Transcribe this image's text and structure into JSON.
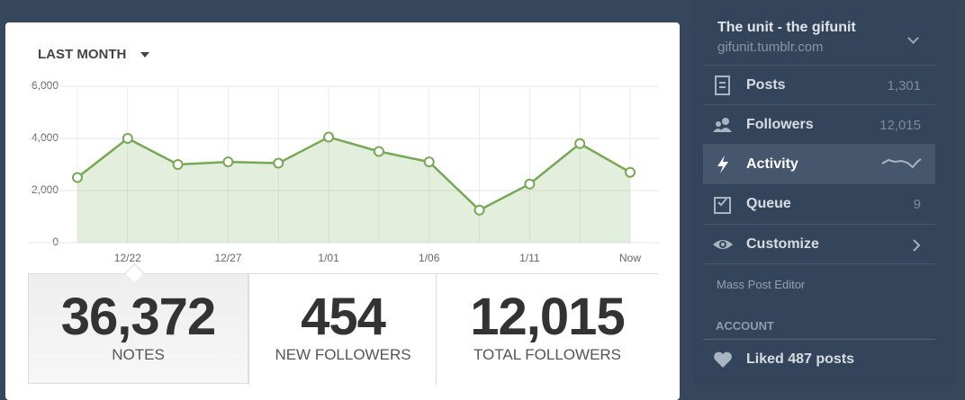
{
  "period": "LAST MONTH",
  "chart_data": {
    "type": "line",
    "categories": [
      null,
      "12/22",
      null,
      "12/27",
      null,
      "1/01",
      null,
      "1/06",
      null,
      "1/11",
      null,
      "Now"
    ],
    "values": [
      2500,
      4000,
      3000,
      3100,
      3050,
      4050,
      3500,
      3100,
      1250,
      2250,
      3800,
      2700
    ],
    "color": "#77a855",
    "ylim": [
      0,
      6000
    ],
    "yticks": [
      0,
      {
        "value": 2000,
        "label": "2,000"
      },
      {
        "value": 4000,
        "label": "4,000"
      },
      {
        "value": 6000,
        "label": "6,000"
      }
    ],
    "grid": true
  },
  "stats": [
    {
      "value": "36,372",
      "label": "NOTES"
    },
    {
      "value": "454",
      "label": "NEW FOLLOWERS"
    },
    {
      "value": "12,015",
      "label": "TOTAL FOLLOWERS"
    }
  ],
  "sidebar": {
    "blog_name": "The unit - the gifunit",
    "blog_url": "gifunit.tumblr.com",
    "menu": [
      {
        "label": "Posts",
        "count": "1,301"
      },
      {
        "label": "Followers",
        "count": "12,015"
      },
      {
        "label": "Activity"
      },
      {
        "label": "Queue",
        "count": "9"
      },
      {
        "label": "Customize"
      }
    ],
    "mass_post_editor": "Mass Post Editor",
    "account_heading": "ACCOUNT",
    "liked": "Liked 487 posts"
  }
}
